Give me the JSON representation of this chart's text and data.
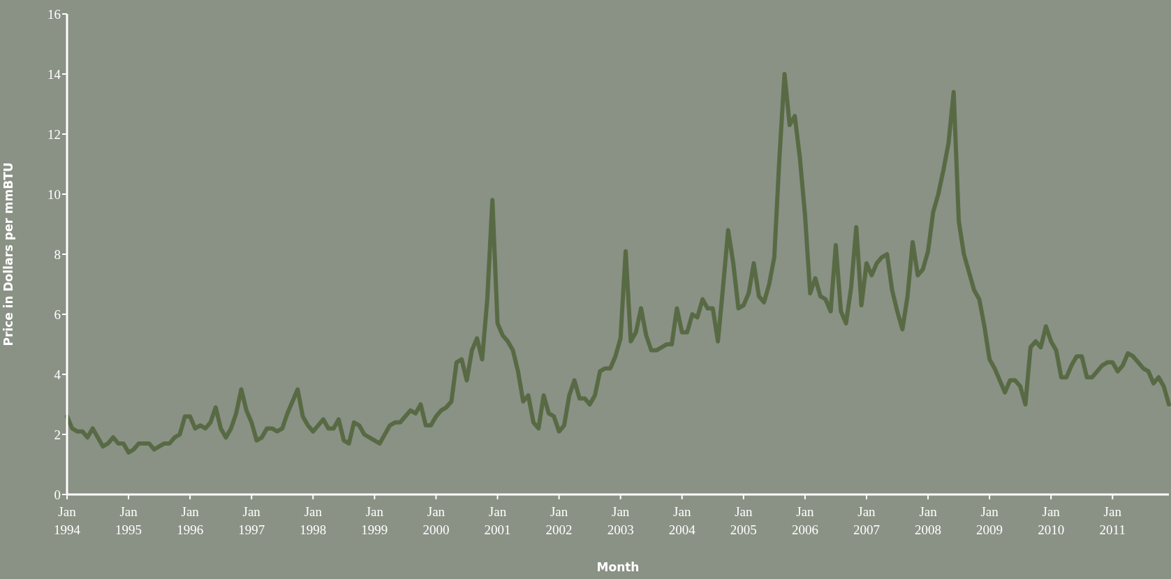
{
  "chart_data": {
    "type": "line",
    "xlabel": "Month",
    "ylabel": "Price in Dollars per mmBTU",
    "categories": [
      "Jan 1994",
      null,
      null,
      null,
      null,
      null,
      null,
      null,
      null,
      null,
      null,
      null,
      "Jan 1995",
      null,
      null,
      null,
      null,
      null,
      null,
      null,
      null,
      null,
      null,
      null,
      "Jan 1996",
      null,
      null,
      null,
      null,
      null,
      null,
      null,
      null,
      null,
      null,
      null,
      "Jan 1997",
      null,
      null,
      null,
      null,
      null,
      null,
      null,
      null,
      null,
      null,
      null,
      "Jan 1998",
      null,
      null,
      null,
      null,
      null,
      null,
      null,
      null,
      null,
      null,
      null,
      "Jan 1999",
      null,
      null,
      null,
      null,
      null,
      null,
      null,
      null,
      null,
      null,
      null,
      "Jan 2000",
      null,
      null,
      null,
      null,
      null,
      null,
      null,
      null,
      null,
      null,
      null,
      "Jan 2001",
      null,
      null,
      null,
      null,
      null,
      null,
      null,
      null,
      null,
      null,
      null,
      "Jan 2002",
      null,
      null,
      null,
      null,
      null,
      null,
      null,
      null,
      null,
      null,
      null,
      "Jan 2003",
      null,
      null,
      null,
      null,
      null,
      null,
      null,
      null,
      null,
      null,
      null,
      "Jan 2004",
      null,
      null,
      null,
      null,
      null,
      null,
      null,
      null,
      null,
      null,
      null,
      "Jan 2005",
      null,
      null,
      null,
      null,
      null,
      null,
      null,
      null,
      null,
      null,
      null,
      "Jan 2006",
      null,
      null,
      null,
      null,
      null,
      null,
      null,
      null,
      null,
      null,
      null,
      "Jan 2007",
      null,
      null,
      null,
      null,
      null,
      null,
      null,
      null,
      null,
      null,
      null,
      "Jan 2008",
      null,
      null,
      null,
      null,
      null,
      null,
      null,
      null,
      null,
      null,
      null,
      "Jan 2009",
      null,
      null,
      null,
      null,
      null,
      null,
      null,
      null,
      null,
      null,
      null,
      "Jan 2010",
      null,
      null,
      null,
      null,
      null,
      null,
      null,
      null,
      null,
      null,
      null,
      "Jan 2011",
      null,
      null,
      null,
      null,
      null,
      null,
      null,
      null,
      null,
      null,
      null
    ],
    "series": [
      {
        "color": "#586a44",
        "values": [
          2.6,
          2.2,
          2.1,
          2.1,
          1.9,
          2.2,
          1.9,
          1.6,
          1.7,
          1.9,
          1.7,
          1.7,
          1.4,
          1.5,
          1.7,
          1.7,
          1.7,
          1.5,
          1.6,
          1.7,
          1.7,
          1.9,
          2.0,
          2.6,
          2.6,
          2.2,
          2.3,
          2.2,
          2.4,
          2.9,
          2.2,
          1.9,
          2.2,
          2.7,
          3.5,
          2.8,
          2.4,
          1.8,
          1.9,
          2.2,
          2.2,
          2.1,
          2.2,
          2.7,
          3.1,
          3.5,
          2.6,
          2.3,
          2.1,
          2.3,
          2.5,
          2.2,
          2.2,
          2.5,
          1.8,
          1.7,
          2.4,
          2.3,
          2.0,
          1.9,
          1.8,
          1.7,
          2.0,
          2.3,
          2.4,
          2.4,
          2.6,
          2.8,
          2.7,
          3.0,
          2.3,
          2.3,
          2.6,
          2.8,
          2.9,
          3.1,
          4.4,
          4.5,
          3.8,
          4.8,
          5.2,
          4.5,
          6.5,
          9.8,
          5.7,
          5.3,
          5.1,
          4.8,
          4.1,
          3.1,
          3.3,
          2.4,
          2.2,
          3.3,
          2.7,
          2.6,
          2.1,
          2.3,
          3.3,
          3.8,
          3.2,
          3.2,
          3.0,
          3.3,
          4.1,
          4.2,
          4.2,
          4.6,
          5.2,
          8.1,
          5.1,
          5.4,
          6.2,
          5.3,
          4.8,
          4.8,
          4.9,
          5.0,
          5.0,
          6.2,
          5.4,
          5.4,
          6.0,
          5.9,
          6.5,
          6.2,
          6.2,
          5.1,
          6.9,
          8.8,
          7.7,
          6.2,
          6.3,
          6.7,
          7.7,
          6.6,
          6.4,
          7.0,
          7.9,
          11.2,
          14.0,
          12.3,
          12.6,
          11.2,
          9.3,
          6.7,
          7.2,
          6.6,
          6.5,
          6.1,
          8.3,
          6.1,
          5.7,
          6.9,
          8.9,
          6.3,
          7.7,
          7.3,
          7.7,
          7.9,
          8.0,
          6.8,
          6.1,
          5.5,
          6.6,
          8.4,
          7.3,
          7.5,
          8.1,
          9.4,
          10.0,
          10.8,
          11.7,
          13.4,
          9.1,
          8.0,
          7.4,
          6.8,
          6.5,
          5.6,
          4.5,
          4.2,
          3.8,
          3.4,
          3.8,
          3.8,
          3.6,
          3.0,
          4.9,
          5.1,
          4.9,
          5.6,
          5.1,
          4.8,
          3.9,
          3.9,
          4.3,
          4.6,
          4.6,
          3.9,
          3.9,
          4.1,
          4.3,
          4.4,
          4.4,
          4.1,
          4.3,
          4.7,
          4.6,
          4.4,
          4.2,
          4.1,
          3.7,
          3.9,
          3.6,
          3.0
        ]
      }
    ],
    "ylim": [
      0,
      16
    ],
    "yticks": [
      0,
      2,
      4,
      6,
      8,
      10,
      12,
      14,
      16
    ],
    "grid": false,
    "legend": false,
    "marker": "none",
    "line_style": "solid"
  }
}
